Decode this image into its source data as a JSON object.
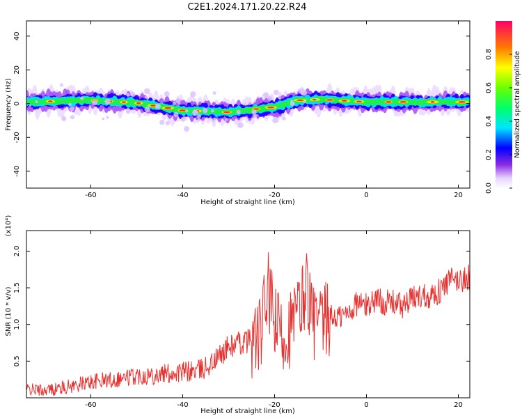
{
  "title": "C2E1.2024.171.20.22.R24",
  "chart_data": [
    {
      "type": "heatmap",
      "xlabel": "Height of straight line (km)",
      "ylabel": "Frequency (Hz)",
      "xlim": [
        -74,
        22.5
      ],
      "ylim": [
        -50,
        49
      ],
      "x_ticks": [
        -60,
        -40,
        -20,
        0,
        20
      ],
      "y_ticks": [
        -40,
        -20,
        0,
        20,
        40
      ],
      "colorbar": {
        "label": "Normalized spectral amplitude",
        "range": [
          0.0,
          1.0
        ],
        "ticks": [
          "0.0",
          "0.2",
          "0.4",
          "0.6",
          "0.8"
        ],
        "tick_values": [
          0.0,
          0.2,
          0.4,
          0.6,
          0.8
        ]
      },
      "ridge": {
        "description_points_x": [
          -74,
          -60,
          -50,
          -40,
          -30,
          -20,
          -15,
          -10,
          0,
          10,
          22.5
        ],
        "description_points_freq": [
          1,
          2,
          0.5,
          -4,
          -5,
          -2,
          2,
          2.5,
          1,
          1,
          1
        ]
      }
    },
    {
      "type": "line",
      "xlabel": "Height of straight line (km)",
      "ylabel": "SNR (10 * v/v)",
      "y_multiplier": "(x10⁴)",
      "xlim": [
        -74,
        22.5
      ],
      "ylim": [
        0.0,
        2.28
      ],
      "x_ticks": [
        -60,
        -40,
        -20,
        0,
        20
      ],
      "y_ticks": [
        0.5,
        1.0,
        1.5,
        2.0
      ],
      "series": [
        {
          "color": "#e8312f",
          "x": [
            -74,
            -70,
            -65,
            -60,
            -55,
            -50,
            -45,
            -40,
            -36,
            -33,
            -30,
            -27,
            -25,
            -23,
            -21.5,
            -20,
            -18,
            -16,
            -14,
            -13,
            -12,
            -10,
            -8,
            -6,
            -4,
            -2,
            0,
            2,
            4,
            6,
            8,
            10,
            12,
            14,
            16,
            18,
            20,
            22.5
          ],
          "y": [
            0.12,
            0.1,
            0.15,
            0.22,
            0.25,
            0.3,
            0.32,
            0.35,
            0.38,
            0.5,
            0.7,
            0.75,
            0.8,
            0.85,
            1.5,
            1.0,
            0.85,
            1.0,
            1.3,
            1.6,
            1.1,
            0.95,
            1.1,
            1.1,
            1.15,
            1.3,
            1.25,
            1.35,
            1.3,
            1.3,
            1.25,
            1.35,
            1.4,
            1.4,
            1.45,
            1.6,
            1.6,
            1.65
          ]
        }
      ]
    }
  ]
}
